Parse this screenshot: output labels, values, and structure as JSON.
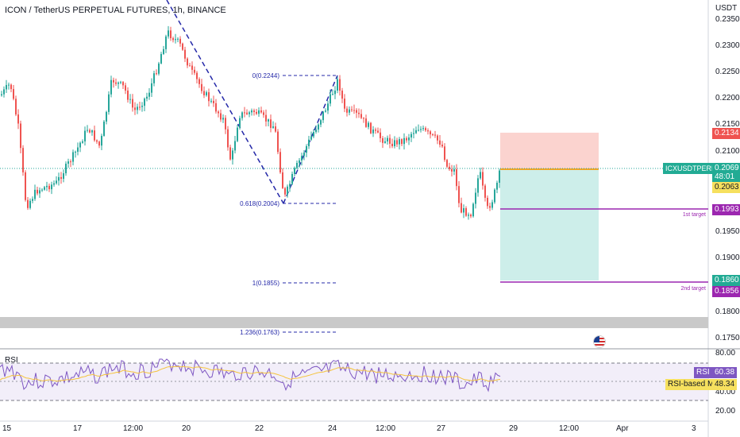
{
  "header": {
    "title": "ICON / TetherUS PERPETUAL FUTURES, 1h, BINANCE"
  },
  "price_axis": {
    "currency": "USDT",
    "ticks": [
      "0.2350",
      "0.2300",
      "0.2250",
      "0.2200",
      "0.2150",
      "0.2100",
      "0.1950",
      "0.1900",
      "0.1800",
      "0.1750"
    ]
  },
  "rsi_axis": {
    "ticks": [
      "80.00",
      "40.00",
      "20.00"
    ]
  },
  "time_axis": {
    "labels": [
      "15",
      "17",
      "12:00",
      "20",
      "22",
      "24",
      "12:00",
      "27",
      "29",
      "12:00",
      "Apr",
      "3"
    ]
  },
  "tags": {
    "stop": "0.2134",
    "symbol": "ICXUSDTPERP",
    "last_price": "0.2069",
    "countdown": "48:01",
    "entry": "0.2063",
    "target1": "0.1993",
    "target2_top": "0.1860",
    "target2": "0.1856",
    "rsi_label": "RSI",
    "rsi_value": "60.38",
    "rsi_ma_label": "RSI-based MA",
    "rsi_ma_value": "48.34"
  },
  "fib": {
    "level_0": "0(0.2244)",
    "level_618": "0.618(0.2004)",
    "level_1": "1(0.1855)",
    "level_1236": "1.236(0.1763)"
  },
  "labels": {
    "target1": "1st target",
    "target2": "2nd target",
    "rsi_name": "RSI"
  },
  "icons": {
    "flag": "us-flag-icon"
  },
  "colors": {
    "up": "#26a69a",
    "down": "#ef5350",
    "fib": "#2428a8",
    "target": "#9c27b0",
    "stop_zone": "#fbd3cf",
    "profit_zone": "#cdeeea",
    "rsi": "#7e57c2",
    "rsi_ma": "#f5c33b",
    "symbol_tag": "#22ab94"
  },
  "chart_data": {
    "type": "candlestick",
    "price_range": [
      0.173,
      0.237
    ],
    "fib_levels": [
      {
        "ratio": 0,
        "price": 0.2244
      },
      {
        "ratio": 0.618,
        "price": 0.2004
      },
      {
        "ratio": 1,
        "price": 0.1855
      },
      {
        "ratio": 1.236,
        "price": 0.1763
      }
    ],
    "position": {
      "entry": 0.2063,
      "stop": 0.2134,
      "target1": 0.1993,
      "target2": 0.1856
    },
    "last_price": 0.2069,
    "rsi": {
      "last": 60.38,
      "ma": 48.34,
      "levels": [
        70,
        50,
        30
      ],
      "range": [
        20,
        80
      ]
    }
  }
}
